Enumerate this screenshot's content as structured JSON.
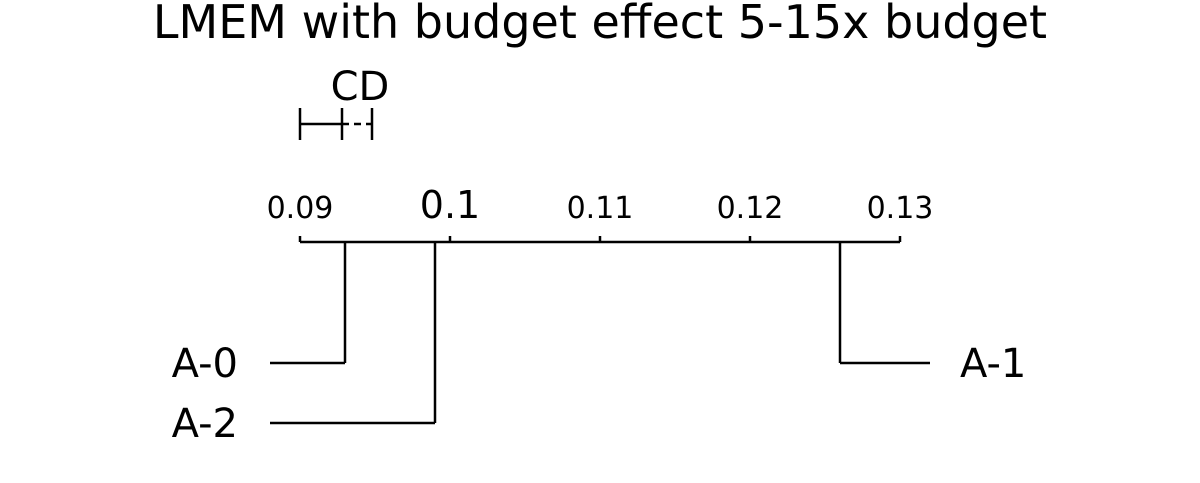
{
  "chart_data": {
    "type": "critical-difference",
    "title": "LMEM with budget effect 5-15x budget",
    "cd_label": "CD",
    "cd_range": [
      0.09,
      0.0928,
      0.0948
    ],
    "axis": {
      "ticks": [
        0.09,
        0.1,
        0.11,
        0.12,
        0.13
      ],
      "tick_labels": [
        "0.09",
        "0.1",
        "0.11",
        "0.12",
        "0.13"
      ],
      "range": [
        0.09,
        0.13
      ]
    },
    "methods": [
      {
        "name": "A-0",
        "value": 0.093,
        "side": "left"
      },
      {
        "name": "A-2",
        "value": 0.099,
        "side": "left"
      },
      {
        "name": "A-1",
        "value": 0.126,
        "side": "right"
      }
    ],
    "line_color": "#000000"
  }
}
